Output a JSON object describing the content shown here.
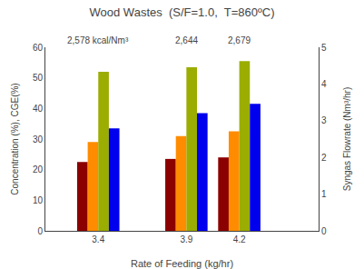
{
  "chart_data": {
    "type": "bar",
    "title": "Wood Wastes  (S/F=1.0,  T=860ºC)",
    "xlabel": "Rate of Feeding (kg/hr)",
    "ylabel": "Concentration (%), CGE(%)",
    "y2label": "Syngas Flowrate (Nm³/hr)",
    "x": [
      3.4,
      3.9,
      4.2
    ],
    "xlim": [
      3.1,
      4.65
    ],
    "xticks": [
      3.4,
      3.9,
      4.2
    ],
    "ylim": [
      0,
      60
    ],
    "yticks": [
      0,
      10,
      20,
      30,
      40,
      50,
      60
    ],
    "y2lim": [
      0,
      5
    ],
    "y2ticks": [
      0,
      1,
      2,
      3,
      4,
      5
    ],
    "grid": false,
    "annotations": [
      "2,578 kcal/Nm³",
      "2,644",
      "2,679"
    ],
    "series": [
      {
        "color": "#8B0000",
        "values": [
          22.5,
          23.5,
          24.0
        ]
      },
      {
        "color": "#FF8C00",
        "values": [
          29.0,
          31.0,
          32.5
        ]
      },
      {
        "color": "#9AAD00",
        "values": [
          52.0,
          53.5,
          55.5
        ]
      },
      {
        "color": "#0000EE",
        "values": [
          33.5,
          38.5,
          41.5
        ]
      }
    ]
  }
}
